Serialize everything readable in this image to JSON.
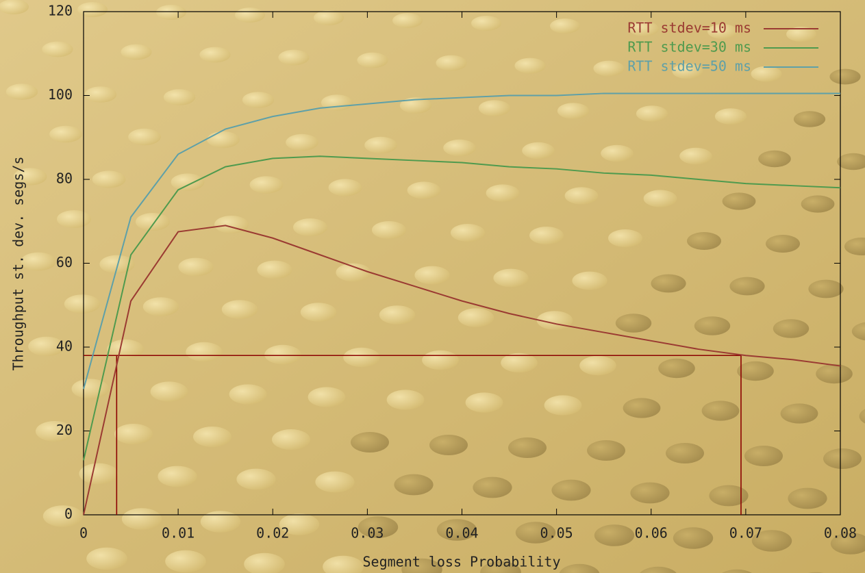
{
  "chart_data": {
    "type": "line",
    "xlabel": "Segment loss Probability",
    "ylabel": "Throughput st. dev. segs/s",
    "x": [
      0,
      0.005,
      0.01,
      0.015,
      0.02,
      0.025,
      0.03,
      0.035,
      0.04,
      0.045,
      0.05,
      0.055,
      0.06,
      0.065,
      0.07,
      0.075,
      0.08
    ],
    "series": [
      {
        "name": "RTT stdev=10 ms",
        "color": "#9a3a32",
        "values": [
          0,
          51,
          67.5,
          69,
          66,
          62,
          58,
          54.5,
          51,
          48,
          45.5,
          43.5,
          41.5,
          39.5,
          38,
          37,
          35.5
        ]
      },
      {
        "name": "RTT stdev=30 ms",
        "color": "#4e9a4e",
        "values": [
          13,
          62,
          77.5,
          83,
          85,
          85.5,
          85,
          84.5,
          84,
          83,
          82.5,
          81.5,
          81,
          80,
          79,
          78.5,
          78
        ]
      },
      {
        "name": "RTT stdev=50 ms",
        "color": "#5ea0a8",
        "values": [
          30,
          71,
          86,
          92,
          95,
          97,
          98,
          99,
          99.5,
          100,
          100,
          100.5,
          100.5,
          100.5,
          100.5,
          100.5,
          100.5
        ]
      }
    ],
    "annotation_lines": {
      "color": "#8b0000",
      "y": 38,
      "x": [
        0.0035,
        0.0695
      ]
    },
    "xlim": [
      0,
      0.08
    ],
    "xticks": [
      0,
      0.01,
      0.02,
      0.03,
      0.04,
      0.05,
      0.06,
      0.07,
      0.08
    ],
    "ylim": [
      0,
      120
    ],
    "yticks": [
      0,
      20,
      40,
      60,
      80,
      100,
      120
    ],
    "legend": "upper right"
  }
}
